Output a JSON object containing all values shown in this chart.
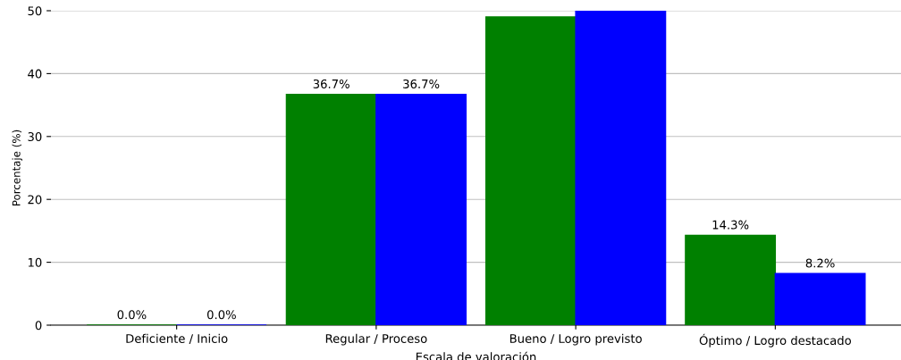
{
  "chart_data": {
    "type": "bar",
    "xlabel": "Escala de valoración",
    "ylabel": "Porcentaje (%)",
    "categories": [
      "Deficiente / Inicio",
      "Regular / Proceso",
      "Bueno / Logro previsto",
      "Óptimo / Logro destacado"
    ],
    "series": [
      {
        "color": "#008000",
        "values": [
          0.0,
          36.7,
          49.0,
          14.3
        ],
        "value_labels": [
          "0.0%",
          "36.7%",
          null,
          "14.3%"
        ]
      },
      {
        "color": "#0000ff",
        "values": [
          0.0,
          36.7,
          50.0,
          8.2
        ],
        "value_labels": [
          "0.0%",
          "36.7%",
          null,
          "8.2%"
        ]
      }
    ],
    "ylim": [
      0,
      50
    ],
    "yticks": [
      0,
      10,
      20,
      30,
      40,
      50
    ],
    "grid": "y",
    "legend": false
  }
}
